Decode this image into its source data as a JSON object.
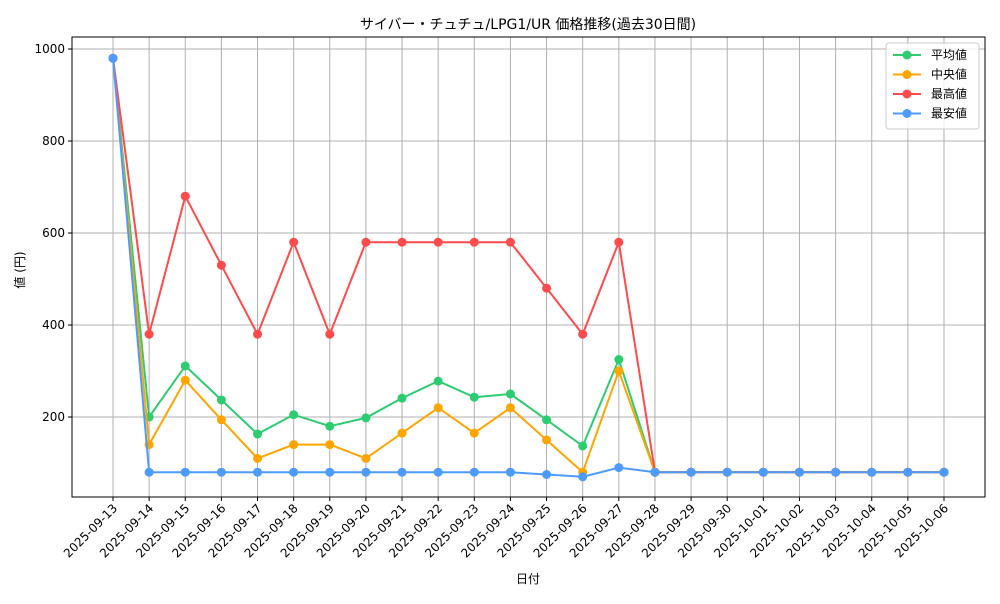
{
  "chart_data": {
    "type": "line",
    "title": "サイバー・チュチュ/LPG1/UR 価格推移(過去30日間)",
    "xlabel": "日付",
    "ylabel": "値 (円)",
    "ylim": [
      30,
      1030
    ],
    "yticks": [
      200,
      400,
      600,
      800,
      1000
    ],
    "grid": true,
    "legend_position": "upper right",
    "categories": [
      "2025-09-13",
      "2025-09-14",
      "2025-09-15",
      "2025-09-16",
      "2025-09-17",
      "2025-09-18",
      "2025-09-19",
      "2025-09-20",
      "2025-09-21",
      "2025-09-22",
      "2025-09-23",
      "2025-09-24",
      "2025-09-25",
      "2025-09-26",
      "2025-09-27",
      "2025-09-28",
      "2025-09-29",
      "2025-09-30",
      "2025-10-01",
      "2025-10-02",
      "2025-10-03",
      "2025-10-04",
      "2025-10-05",
      "2025-10-06"
    ],
    "series": [
      {
        "name": "平均値",
        "color": "#2ecc71",
        "values": [
          980,
          200,
          311,
          237,
          163,
          205,
          180,
          198,
          241,
          278,
          243,
          250,
          194,
          137,
          325,
          80,
          80,
          80,
          80,
          80,
          80,
          80,
          80,
          80
        ]
      },
      {
        "name": "中央値",
        "color": "#ffa500",
        "values": [
          980,
          140,
          280,
          194,
          110,
          140,
          140,
          110,
          165,
          220,
          165,
          220,
          150,
          80,
          300,
          80,
          80,
          80,
          80,
          80,
          80,
          80,
          80,
          80
        ]
      },
      {
        "name": "最高値",
        "color": "#ff4b4b",
        "values": [
          980,
          380,
          680,
          530,
          380,
          580,
          380,
          580,
          580,
          580,
          580,
          580,
          480,
          380,
          580,
          80,
          80,
          80,
          80,
          80,
          80,
          80,
          80,
          80
        ]
      },
      {
        "name": "最安値",
        "color": "#4d9bff",
        "values": [
          980,
          80,
          80,
          80,
          80,
          80,
          80,
          80,
          80,
          80,
          80,
          80,
          75,
          70,
          90,
          80,
          80,
          80,
          80,
          80,
          80,
          80,
          80,
          80
        ]
      }
    ]
  }
}
